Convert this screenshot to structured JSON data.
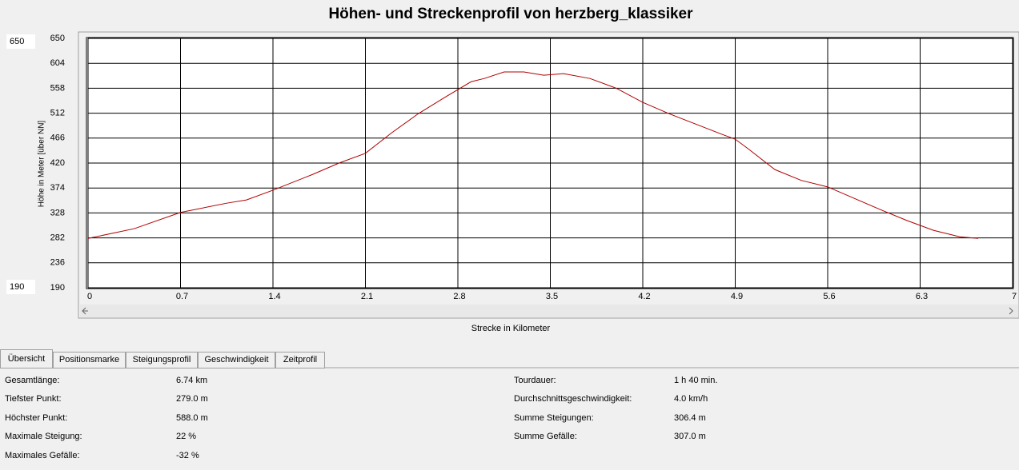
{
  "chart_data": {
    "type": "line",
    "title": "Höhen- und Streckenprofil von herzberg_klassiker",
    "y_label": "Höhe in Meter [über NN]",
    "x_label": "Strecke in Kilometer",
    "x": [
      0,
      0.35,
      0.7,
      1.05,
      1.2,
      1.4,
      1.7,
      1.9,
      2.1,
      2.3,
      2.5,
      2.7,
      2.9,
      3.0,
      3.15,
      3.3,
      3.45,
      3.6,
      3.8,
      4.0,
      4.2,
      4.4,
      4.6,
      4.8,
      4.9,
      5.0,
      5.2,
      5.4,
      5.6,
      5.8,
      6.0,
      6.2,
      6.4,
      6.6,
      6.74
    ],
    "series": [
      {
        "color": "#b00000",
        "values": [
          281,
          299,
          329,
          346,
          352,
          370,
          399,
          420,
          438,
          476,
          511,
          541,
          570,
          576,
          588,
          588,
          582,
          585,
          576,
          558,
          532,
          511,
          492,
          473,
          464,
          446,
          408,
          388,
          376,
          355,
          334,
          314,
          296,
          284,
          281
        ]
      }
    ],
    "xlim": [
      0,
      7
    ],
    "xticks": [
      0,
      0.7,
      1.4,
      2.1,
      2.8,
      3.5,
      4.2,
      4.9,
      5.6,
      6.3,
      7
    ],
    "ylim": [
      190,
      650
    ],
    "yticks": [
      190,
      236,
      282,
      328,
      374,
      420,
      466,
      512,
      558,
      604,
      650
    ],
    "grid": true
  },
  "range_fields": {
    "max": "650",
    "min": "190"
  },
  "tabs": [
    "Übersicht",
    "Positionsmarke",
    "Steigungsprofil",
    "Geschwindigkeit",
    "Zeitprofil"
  ],
  "stats": {
    "left": [
      [
        "Gesamtlänge:",
        "6.74 km"
      ],
      [
        "Tiefster Punkt:",
        "279.0 m"
      ],
      [
        "Höchster Punkt:",
        "588.0 m"
      ],
      [
        "Maximale Steigung:",
        "22 %"
      ],
      [
        "Maximales Gefälle:",
        "-32 %"
      ]
    ],
    "right": [
      [
        "Tourdauer:",
        "1 h 40 min."
      ],
      [
        "Durchschnittsgeschwindigkeit:",
        "4.0 km/h"
      ],
      [
        "Summe Steigungen:",
        "306.4 m"
      ],
      [
        "Summe Gefälle:",
        "307.0 m"
      ]
    ]
  }
}
